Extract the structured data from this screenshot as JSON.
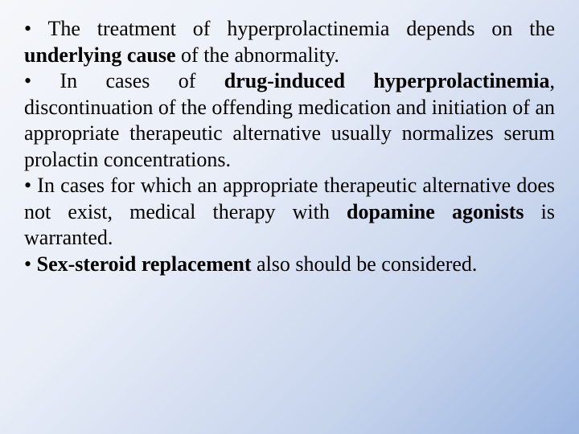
{
  "slide": {
    "background_gradient": [
      "#f5f7fb",
      "#e8edf7",
      "#c5d3ec",
      "#9db6e0"
    ],
    "font_family": "Times New Roman",
    "text_color": "#000000",
    "font_size_pt": 26,
    "text_align": "justify",
    "bullets": [
      {
        "marker": "• ",
        "runs": [
          {
            "t": "The treatment of hyperprolactinemia depends on the ",
            "bold": false
          },
          {
            "t": "underlying cause",
            "bold": true
          },
          {
            "t": " of the abnormality.",
            "bold": false
          }
        ]
      },
      {
        "marker": "• ",
        "runs": [
          {
            "t": "In cases of ",
            "bold": false
          },
          {
            "t": "drug-induced hyperprolactinemia",
            "bold": true
          },
          {
            "t": ", discontinuation of the offending medication and initiation of an appropriate therapeutic alternative usually normalizes serum prolactin concentrations.",
            "bold": false
          }
        ]
      },
      {
        "marker": "• ",
        "runs": [
          {
            "t": "In cases for which an appropriate therapeutic alternative does not exist, medical therapy with ",
            "bold": false
          },
          {
            "t": "dopamine agonists",
            "bold": true
          },
          {
            "t": " is warranted.",
            "bold": false
          }
        ]
      },
      {
        "marker": "• ",
        "runs": [
          {
            "t": "Sex-steroid replacement",
            "bold": true
          },
          {
            "t": " also should be considered.",
            "bold": false
          }
        ]
      }
    ]
  }
}
